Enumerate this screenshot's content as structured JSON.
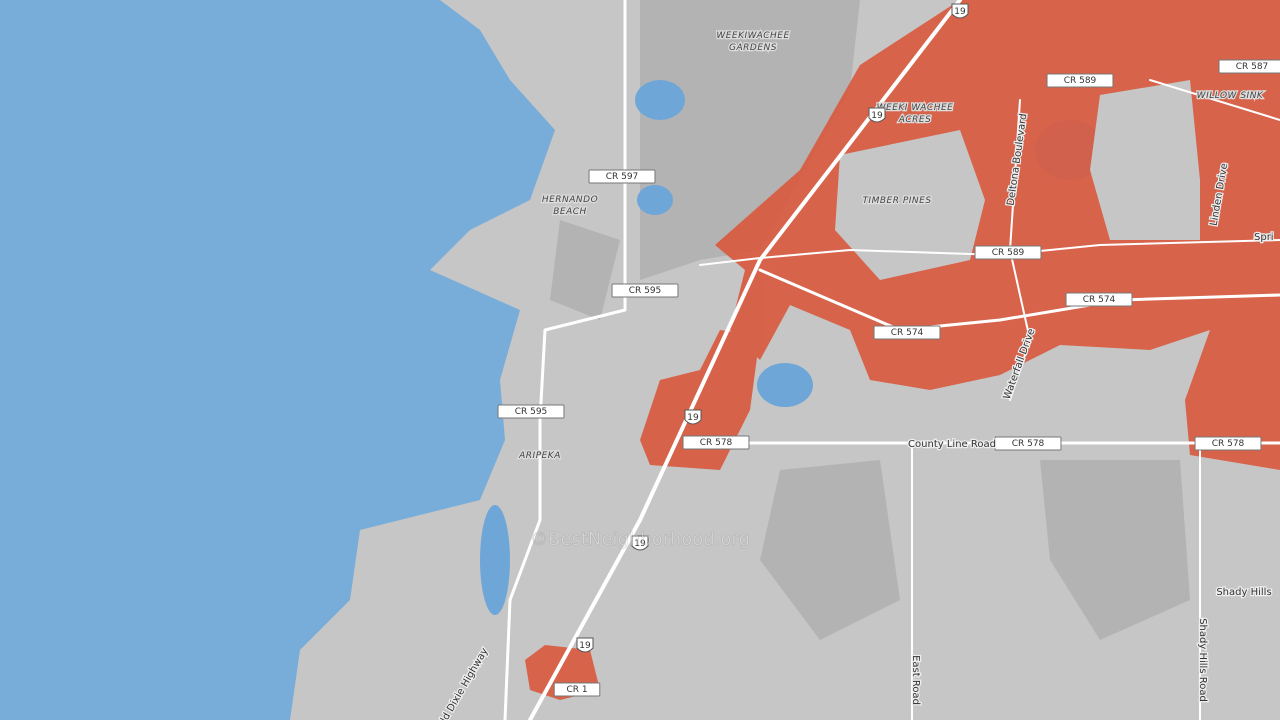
{
  "map": {
    "places": [
      "WEEKIWACHEE",
      "GARDENS",
      "WEEKI WACHEE",
      "ACRES",
      "HERNANDO",
      "BEACH",
      "TIMBER PINES",
      "ARIPEKA",
      "WILLOW SINK",
      "Shady Hills",
      "Spri"
    ],
    "road_shields": [
      "CR 597",
      "CR 595",
      "CR 595",
      "CR 578",
      "CR 578",
      "CR 578",
      "CR 574",
      "CR 574",
      "CR 589",
      "CR 589",
      "CR 587",
      "CR 1"
    ],
    "us_shields": [
      "19",
      "19",
      "19",
      "19",
      "19"
    ],
    "road_names": [
      "County Line Road",
      "Deltona Boulevard",
      "Waterfall Drive",
      "Linden Drive",
      "East Road",
      "Shady Hills Road",
      "Old Dixie Highway"
    ],
    "watermark": "©BestNeighborhood.org"
  }
}
